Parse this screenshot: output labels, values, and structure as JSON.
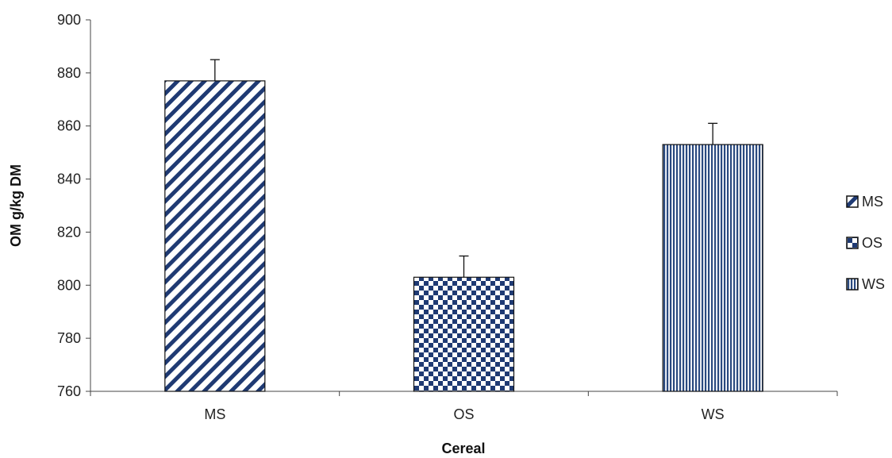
{
  "chart_data": {
    "type": "bar",
    "title": "",
    "xlabel": "Cereal",
    "ylabel": "OM g/kg DM",
    "categories": [
      "MS",
      "OS",
      "WS"
    ],
    "values": [
      877,
      803,
      853
    ],
    "error": [
      8,
      8,
      8
    ],
    "ylim": [
      760,
      900
    ],
    "yticks": [
      "760",
      "780",
      "800",
      "820",
      "840",
      "860",
      "880",
      "900"
    ],
    "grid": false,
    "legend": {
      "position": "right",
      "entries": [
        "MS",
        "OS",
        "WS"
      ]
    },
    "patterns": [
      "diagonal-stripes",
      "checkerboard",
      "vertical-stripes"
    ],
    "colors": {
      "pattern": "#1f3a73",
      "background": "#ffffff",
      "axis": "#444444"
    }
  }
}
